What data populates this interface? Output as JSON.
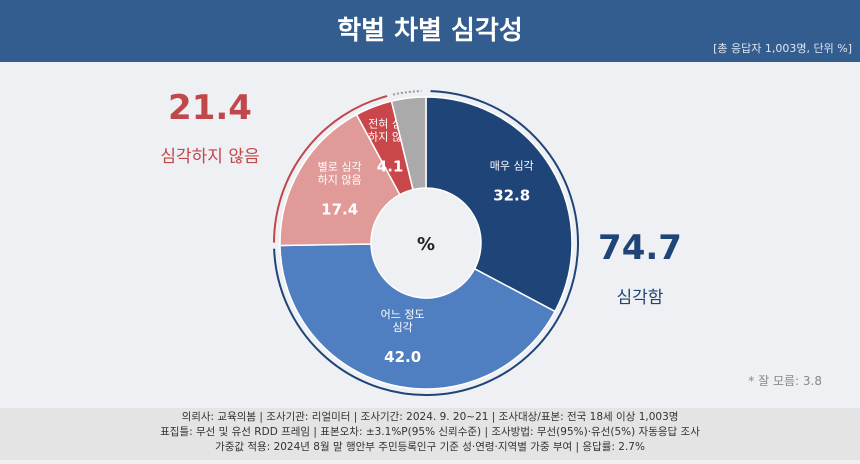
{
  "header": {
    "title": "학벌 차별 심각성",
    "note": "[총 응답자 1,003명, 단위 %]"
  },
  "chart_data": {
    "type": "pie",
    "donut": true,
    "center_label": "%",
    "slices": [
      {
        "label": "매우 심각",
        "value": 32.8,
        "color": "#1f4477"
      },
      {
        "label": "어느 정도 심각",
        "value": 42.0,
        "color": "#4f7fc0"
      },
      {
        "label": "별로 심각 하지 않음",
        "value": 17.4,
        "color": "#e09a98"
      },
      {
        "label": "전혀 심각 하지 않음",
        "value": 4.1,
        "color": "#c9474a"
      },
      {
        "label": "",
        "value": 3.8,
        "color": "#aaaaaa"
      }
    ],
    "groups": {
      "serious": {
        "value": "74.7",
        "label": "심각함",
        "color": "#1f4477"
      },
      "not_serious": {
        "value": "21.4",
        "label": "심각하지 않음",
        "color": "#c0474a"
      }
    },
    "dont_know": "* 잘 모름: 3.8"
  },
  "footer": [
    "의뢰사: 교육의봄 | 조사기관: 리얼미터  |  조사기간: 2024. 9. 20~21 | 조사대상/표본: 전국 18세 이상 1,003명",
    "표집틀: 무선 및 유선 RDD 프레임 | 표본오차: ±3.1%P(95% 신뢰수준) | 조사방법: 무선(95%)·유선(5%) 자동응답 조사",
    "가중값 적용: 2024년 8월 말 행안부 주민등록인구 기준 성·연령·지역별 가중 부여 | 응답률: 2.7%"
  ]
}
